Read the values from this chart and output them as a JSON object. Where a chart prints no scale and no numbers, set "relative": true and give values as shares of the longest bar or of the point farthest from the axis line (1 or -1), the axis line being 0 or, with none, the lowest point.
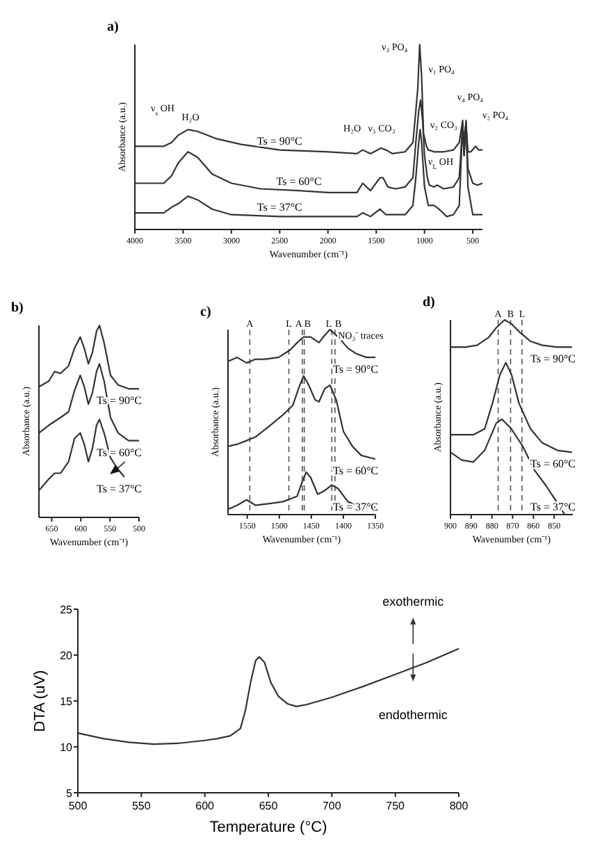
{
  "chart_data": [
    {
      "type": "line",
      "title": "a)",
      "xlabel": "Wavenumber (cm⁻¹)",
      "ylabel": "Absorbance (a.u.)",
      "relative": true,
      "xlim": [
        4000,
        400
      ],
      "xticks": [
        4000,
        3500,
        3000,
        2500,
        2000,
        1500,
        1000,
        500
      ],
      "series": [
        {
          "name": "Ts = 90°C",
          "color": "#333333",
          "x": [
            4000,
            3700,
            3620,
            3550,
            3450,
            3350,
            3150,
            2900,
            2500,
            2000,
            1700,
            1640,
            1560,
            1450,
            1400,
            1330,
            1200,
            1120,
            1090,
            1070,
            1050,
            1030,
            1010,
            980,
            960,
            900,
            800,
            700,
            640,
            605,
            595,
            570,
            550,
            520,
            470,
            440,
            400
          ],
          "values": [
            0.45,
            0.45,
            0.47,
            0.51,
            0.54,
            0.53,
            0.49,
            0.46,
            0.43,
            0.42,
            0.41,
            0.43,
            0.41,
            0.44,
            0.43,
            0.41,
            0.42,
            0.47,
            0.64,
            0.76,
            1,
            0.83,
            0.52,
            0.45,
            0.43,
            0.42,
            0.42,
            0.43,
            0.47,
            0.59,
            0.47,
            0.58,
            0.42,
            0.42,
            0.45,
            0.43,
            0.43
          ]
        },
        {
          "name": "Ts = 60°C",
          "color": "#333333",
          "x": [
            4000,
            3700,
            3620,
            3550,
            3450,
            3350,
            3200,
            3000,
            2700,
            2300,
            2000,
            1700,
            1640,
            1560,
            1460,
            1430,
            1380,
            1300,
            1200,
            1120,
            1090,
            1060,
            1040,
            1020,
            1000,
            970,
            950,
            900,
            870,
            800,
            700,
            640,
            605,
            590,
            570,
            550,
            500,
            450,
            400
          ],
          "values": [
            0.25,
            0.25,
            0.29,
            0.36,
            0.42,
            0.39,
            0.3,
            0.25,
            0.22,
            0.21,
            0.2,
            0.2,
            0.25,
            0.21,
            0.28,
            0.28,
            0.23,
            0.22,
            0.23,
            0.28,
            0.47,
            0.64,
            0.7,
            0.59,
            0.4,
            0.28,
            0.24,
            0.23,
            0.24,
            0.22,
            0.23,
            0.28,
            0.57,
            0.4,
            0.58,
            0.33,
            0.25,
            0.24,
            0.25
          ]
        },
        {
          "name": "Ts = 37°C",
          "color": "#333333",
          "x": [
            4000,
            3700,
            3620,
            3550,
            3450,
            3350,
            3200,
            3000,
            2500,
            2000,
            1700,
            1640,
            1560,
            1460,
            1400,
            1300,
            1200,
            1120,
            1090,
            1060,
            1045,
            1030,
            1000,
            960,
            900,
            850,
            770,
            700,
            640,
            605,
            590,
            570,
            550,
            500,
            400
          ],
          "values": [
            0.09,
            0.09,
            0.12,
            0.14,
            0.18,
            0.16,
            0.11,
            0.08,
            0.07,
            0.07,
            0.07,
            0.09,
            0.07,
            0.11,
            0.08,
            0.08,
            0.08,
            0.13,
            0.28,
            0.47,
            0.54,
            0.47,
            0.23,
            0.13,
            0.13,
            0.11,
            0.07,
            0.08,
            0.13,
            0.57,
            0.4,
            0.59,
            0.23,
            0.08,
            0.08
          ]
        }
      ],
      "annotations": [
        "ν$_{s}$ OH",
        "H₂O",
        "H₂O",
        "ν₃ CO₃",
        "ν₃ PO₄",
        "ν₁ PO₄",
        "ν₂ CO₃",
        "ν₄ PO₄",
        "ν₂ PO₄",
        "ν$_{L}$ OH"
      ]
    },
    {
      "type": "line",
      "title": "b)",
      "xlabel": "Wavenumber (cm⁻¹)",
      "ylabel": "Absorbance (a.u.)",
      "relative": true,
      "xlim": [
        672,
        500
      ],
      "xticks": [
        650,
        600,
        550,
        500
      ],
      "series": [
        {
          "name": "Ts = 90°C",
          "color": "#333333",
          "x": [
            672,
            655,
            645,
            635,
            621,
            611,
            601,
            594,
            587,
            580,
            573,
            568,
            560,
            549,
            536,
            518,
            500
          ],
          "values": [
            0.68,
            0.71,
            0.76,
            0.75,
            0.79,
            0.88,
            0.94,
            0.88,
            0.8,
            0.86,
            0.97,
            1,
            0.91,
            0.74,
            0.69,
            0.67,
            0.67
          ]
        },
        {
          "name": "Ts = 60°C",
          "color": "#333333",
          "x": [
            672,
            655,
            645,
            635,
            621,
            611,
            601,
            594,
            587,
            580,
            573,
            568,
            560,
            549,
            536,
            518,
            500
          ],
          "values": [
            0.44,
            0.48,
            0.5,
            0.52,
            0.55,
            0.66,
            0.74,
            0.68,
            0.59,
            0.65,
            0.76,
            0.8,
            0.71,
            0.52,
            0.44,
            0.4,
            0.4
          ]
        },
        {
          "name": "Ts = 37°C",
          "color": "#333333",
          "x": [
            672,
            655,
            645,
            635,
            621,
            611,
            601,
            594,
            587,
            580,
            573,
            568,
            560,
            549,
            536,
            525
          ],
          "values": [
            0.14,
            0.2,
            0.23,
            0.23,
            0.29,
            0.41,
            0.44,
            0.38,
            0.29,
            0.36,
            0.48,
            0.51,
            0.44,
            0.31,
            0.25,
            0.21
          ]
        }
      ]
    },
    {
      "type": "line",
      "title": "c)",
      "xlabel": "Wavenumber (cm⁻¹)",
      "ylabel": "Absorbance (a.u.)",
      "relative": true,
      "xlim": [
        1580,
        1350
      ],
      "xticks": [
        1550,
        1500,
        1450,
        1400,
        1350
      ],
      "series": [
        {
          "name": "Ts = 90°C",
          "color": "#333333",
          "x": [
            1579,
            1566,
            1551,
            1537,
            1523,
            1501,
            1483,
            1472,
            1462,
            1451,
            1438,
            1429,
            1421,
            1408,
            1393,
            1380,
            1364,
            1350
          ],
          "values": [
            0.83,
            0.85,
            0.82,
            0.84,
            0.84,
            0.85,
            0.89,
            0.93,
            0.96,
            0.96,
            0.93,
            0.97,
            1,
            0.96,
            0.9,
            0.87,
            0.85,
            0.85
          ]
        },
        {
          "name": "Ts = 60°C",
          "color": "#333333",
          "x": [
            1579,
            1566,
            1551,
            1537,
            1515,
            1494,
            1479,
            1469,
            1462,
            1454,
            1444,
            1438,
            1429,
            1421,
            1411,
            1400,
            1386,
            1372,
            1350
          ],
          "values": [
            0.37,
            0.38,
            0.4,
            0.42,
            0.48,
            0.54,
            0.59,
            0.69,
            0.75,
            0.7,
            0.62,
            0.61,
            0.68,
            0.7,
            0.62,
            0.45,
            0.37,
            0.32,
            0.3
          ]
        },
        {
          "name": "Ts = 37°C",
          "color": "#333333",
          "x": [
            1579,
            1566,
            1551,
            1537,
            1515,
            1494,
            1472,
            1465,
            1458,
            1451,
            1440,
            1429,
            1418,
            1408,
            1393,
            1372,
            1350
          ],
          "values": [
            0.03,
            0.05,
            0.08,
            0.05,
            0.06,
            0.07,
            0.1,
            0.17,
            0.23,
            0.2,
            0.11,
            0.13,
            0.16,
            0.14,
            0.07,
            0.04,
            0.04
          ]
        }
      ],
      "ref_lines": [
        {
          "axis": "x",
          "value": 1546,
          "label": "A",
          "color": "#555555",
          "line_style": "dashed"
        },
        {
          "axis": "x",
          "value": 1485,
          "label": "L",
          "color": "#555555",
          "line_style": "dashed"
        },
        {
          "axis": "x",
          "value": 1464,
          "label": "A",
          "color": "#555555",
          "line_style": "dashed"
        },
        {
          "axis": "x",
          "value": 1461,
          "label": "B",
          "color": "#555555",
          "line_style": "dashed"
        },
        {
          "axis": "x",
          "value": 1418,
          "label": "L",
          "color": "#555555",
          "line_style": "dashed"
        },
        {
          "axis": "x",
          "value": 1413,
          "label": "B",
          "color": "#555555",
          "line_style": "dashed"
        }
      ],
      "annotations": [
        "NO₃⁻ traces"
      ]
    },
    {
      "type": "line",
      "title": "d)",
      "xlabel": "Wavenumber (cm⁻¹)",
      "ylabel": "Absorbance (a.u.)",
      "relative": true,
      "xlim": [
        900,
        841
      ],
      "xticks": [
        900,
        890,
        880,
        870,
        860,
        850
      ],
      "series": [
        {
          "name": "Ts = 90°C",
          "color": "#333333",
          "x": [
            900,
            892.6,
            887.1,
            881.6,
            877.9,
            873.9,
            870.6,
            866.9,
            861.4,
            855.9,
            848.5,
            841.4
          ],
          "values": [
            0.86,
            0.86,
            0.87,
            0.91,
            0.96,
            1,
            0.98,
            0.94,
            0.89,
            0.87,
            0.86,
            0.86
          ]
        },
        {
          "name": "Ts = 60°C",
          "color": "#333333",
          "x": [
            900,
            889,
            883.5,
            879.8,
            876.1,
            873.3,
            870.6,
            866.9,
            861.4,
            855.9,
            848.5,
            841.4
          ],
          "values": [
            0.41,
            0.41,
            0.44,
            0.57,
            0.72,
            0.78,
            0.72,
            0.57,
            0.44,
            0.37,
            0.33,
            0.32
          ]
        },
        {
          "name": "Ts = 37°C",
          "color": "#333333",
          "x": [
            900,
            894.5,
            889,
            883.5,
            877.9,
            875.2,
            870.6,
            865.1,
            859.6,
            854,
            848.5,
            844.9
          ],
          "values": [
            0.32,
            0.28,
            0.27,
            0.33,
            0.47,
            0.49,
            0.44,
            0.35,
            0.23,
            0.15,
            0.06,
            0
          ]
        }
      ],
      "ref_lines": [
        {
          "axis": "x",
          "value": 877,
          "label": "A",
          "color": "#555555",
          "line_style": "dashed"
        },
        {
          "axis": "x",
          "value": 871,
          "label": "B",
          "color": "#555555",
          "line_style": "dashed"
        },
        {
          "axis": "x",
          "value": 865.5,
          "label": "L",
          "color": "#555555",
          "line_style": "dashed"
        }
      ]
    },
    {
      "type": "line",
      "xlabel": "Temperature (°C)",
      "ylabel": "DTA (uV)",
      "xlim": [
        500,
        800
      ],
      "xticks": [
        500,
        550,
        600,
        650,
        700,
        750,
        800
      ],
      "ylim": [
        5,
        25
      ],
      "yticks": [
        5,
        10,
        15,
        20,
        25
      ],
      "series": [
        {
          "color": "#333333",
          "x": [
            500,
            520,
            540,
            560,
            580,
            600,
            610,
            620,
            628,
            632,
            636,
            640,
            643,
            647,
            652,
            658,
            665,
            672,
            680,
            700,
            725,
            750,
            775,
            800
          ],
          "values": [
            11.5,
            10.9,
            10.5,
            10.3,
            10.4,
            10.7,
            10.9,
            11.2,
            12,
            14,
            17,
            19.4,
            19.8,
            19.2,
            17,
            15.5,
            14.7,
            14.4,
            14.6,
            15.4,
            16.6,
            17.9,
            19.2,
            20.7
          ]
        }
      ],
      "annotations": [
        "exothermic",
        "endothermic"
      ]
    }
  ]
}
